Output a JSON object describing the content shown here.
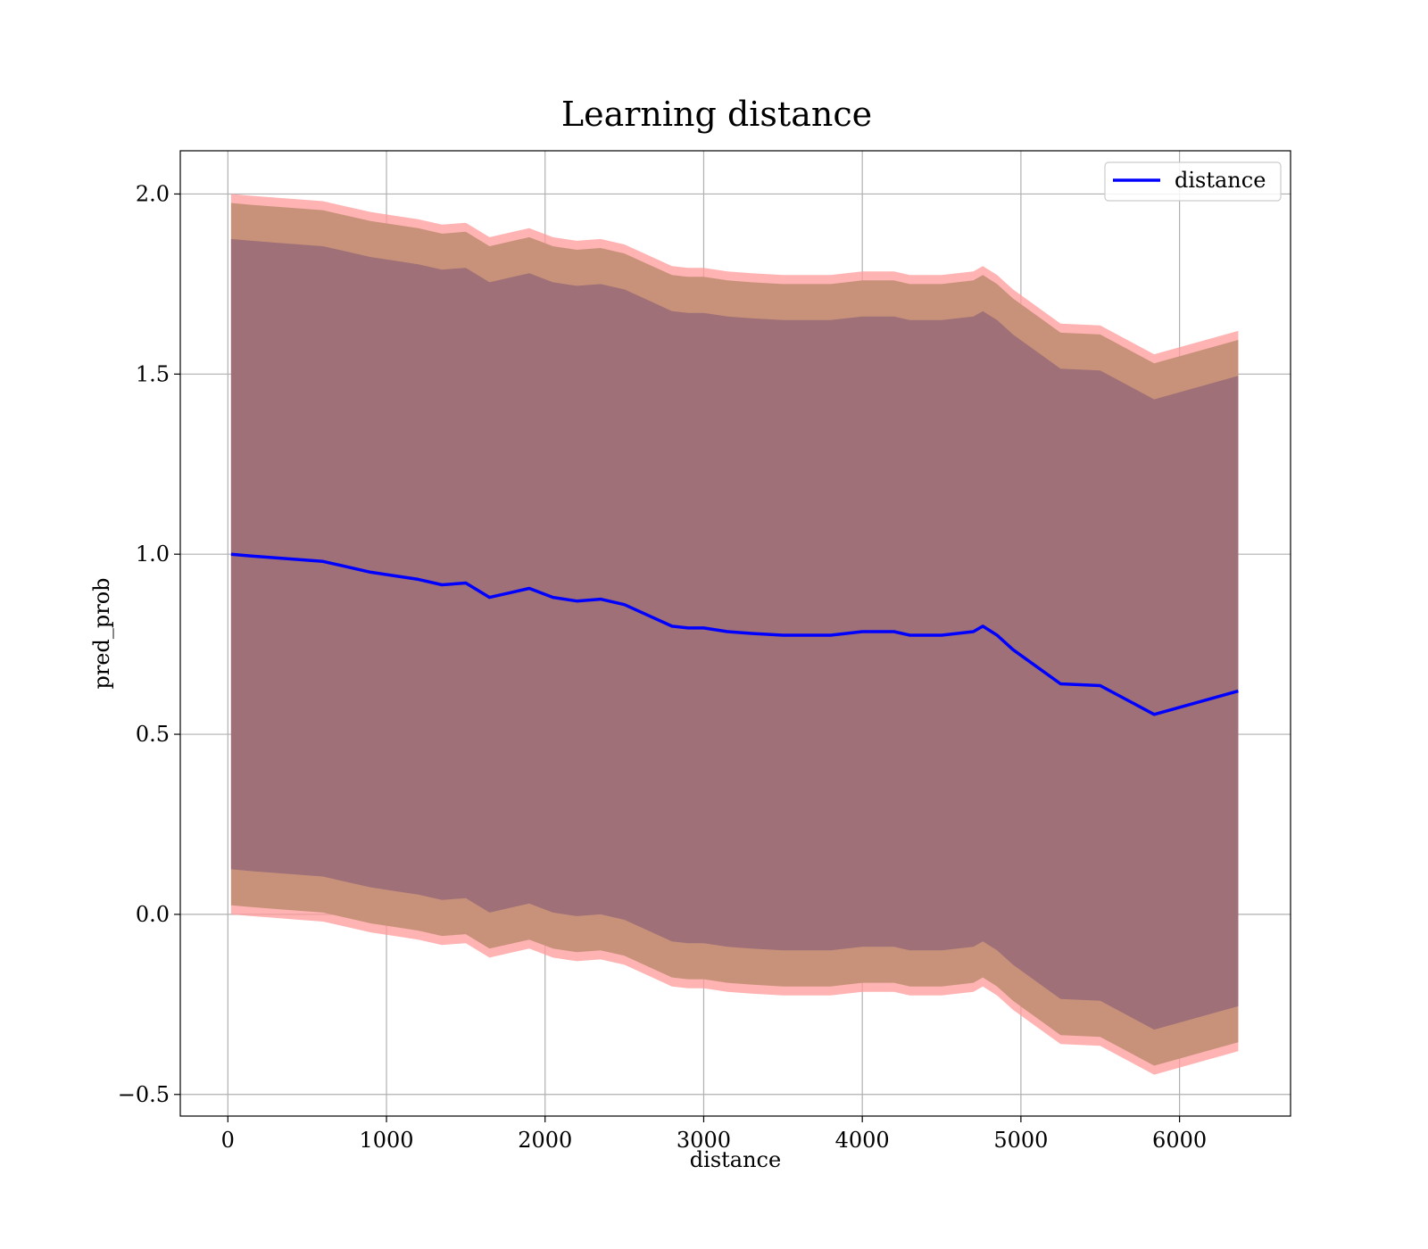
{
  "chart_data": {
    "type": "line",
    "title": "Learning distance",
    "xlabel": "distance",
    "ylabel": "pred_prob",
    "xlim": [
      -300,
      6700
    ],
    "ylim": [
      -0.56,
      2.12
    ],
    "xticks": [
      0,
      1000,
      2000,
      3000,
      4000,
      5000,
      6000
    ],
    "xtick_labels": [
      "0",
      "1000",
      "2000",
      "3000",
      "4000",
      "5000",
      "6000"
    ],
    "yticks": [
      -0.5,
      0.0,
      0.5,
      1.0,
      1.5,
      2.0
    ],
    "ytick_labels": [
      "−0.5",
      "0.0",
      "0.5",
      "1.0",
      "1.5",
      "2.0"
    ],
    "grid": true,
    "legend": {
      "position": "top-right",
      "entries": [
        "distance"
      ]
    },
    "colors": {
      "line": "#0000ff",
      "band_outer": "#ff9999",
      "band_middle": "#c8927a",
      "band_inner": "#a07078"
    },
    "series": [
      {
        "name": "distance",
        "x": [
          20,
          150,
          300,
          450,
          600,
          750,
          900,
          1050,
          1200,
          1350,
          1500,
          1650,
          1800,
          1900,
          2050,
          2200,
          2350,
          2500,
          2650,
          2800,
          2900,
          3000,
          3150,
          3300,
          3500,
          3650,
          3800,
          3900,
          4000,
          4200,
          4300,
          4500,
          4700,
          4760,
          4850,
          4950,
          5250,
          5500,
          5840,
          6370
        ],
        "y": [
          1.0,
          0.995,
          0.99,
          0.985,
          0.98,
          0.965,
          0.95,
          0.94,
          0.93,
          0.915,
          0.92,
          0.88,
          0.895,
          0.905,
          0.88,
          0.87,
          0.875,
          0.86,
          0.83,
          0.8,
          0.795,
          0.795,
          0.785,
          0.78,
          0.775,
          0.775,
          0.775,
          0.78,
          0.785,
          0.785,
          0.775,
          0.775,
          0.785,
          0.8,
          0.775,
          0.735,
          0.64,
          0.635,
          0.555,
          0.62
        ]
      }
    ],
    "bands": [
      {
        "name": "outer",
        "offset": 1.0
      },
      {
        "name": "middle",
        "offset": 0.975
      },
      {
        "name": "inner",
        "offset": 0.875
      }
    ]
  }
}
